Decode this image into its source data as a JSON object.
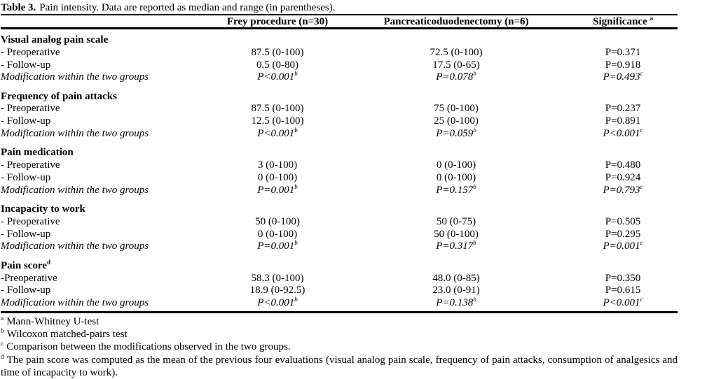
{
  "page": {
    "background": "#ffffff",
    "text_color": "#000000"
  },
  "table": {
    "title": {
      "label": "Table 3.",
      "text": "Pain intensity. Data are reported as median and range (in parentheses)."
    },
    "columns": [
      {
        "label": "Frey procedure (n=30)",
        "sup": ""
      },
      {
        "label": "Pancreaticoduodenectomy (n=6)",
        "sup": ""
      },
      {
        "label": "Significance",
        "sup": "a"
      }
    ],
    "sections": [
      {
        "header": {
          "label": "Visual analog pain scale",
          "sup": ""
        },
        "rows": [
          {
            "label": "- Preoperative",
            "italic": false,
            "cells": [
              {
                "text": "87.5 (0-100)",
                "sup": ""
              },
              {
                "text": "72.5 (0-100)",
                "sup": ""
              },
              {
                "text": "P=0.371",
                "sup": ""
              }
            ]
          },
          {
            "label": "- Follow-up",
            "italic": false,
            "cells": [
              {
                "text": "0.5 (0-80)",
                "sup": ""
              },
              {
                "text": "17.5 (0-65)",
                "sup": ""
              },
              {
                "text": "P=0.918",
                "sup": ""
              }
            ]
          },
          {
            "label": "Modification within the two groups",
            "italic": true,
            "cells": [
              {
                "text": "P<0.001",
                "sup": "b"
              },
              {
                "text": "P=0.078",
                "sup": "b"
              },
              {
                "text": "P=0.493",
                "sup": "c"
              }
            ]
          }
        ]
      },
      {
        "header": {
          "label": "Frequency of pain attacks",
          "sup": ""
        },
        "rows": [
          {
            "label": "- Preoperative",
            "italic": false,
            "cells": [
              {
                "text": "87.5 (0-100)",
                "sup": ""
              },
              {
                "text": "75 (0-100)",
                "sup": ""
              },
              {
                "text": "P=0.237",
                "sup": ""
              }
            ]
          },
          {
            "label": "- Follow-up",
            "italic": false,
            "cells": [
              {
                "text": "12.5 (0-100)",
                "sup": ""
              },
              {
                "text": "25 (0-100)",
                "sup": ""
              },
              {
                "text": "P=0.891",
                "sup": ""
              }
            ]
          },
          {
            "label": "Modification within the two groups",
            "italic": true,
            "cells": [
              {
                "text": "P<0.001",
                "sup": "b"
              },
              {
                "text": "P=0.059",
                "sup": "b"
              },
              {
                "text": "P<0.001",
                "sup": "c"
              }
            ]
          }
        ]
      },
      {
        "header": {
          "label": "Pain medication",
          "sup": ""
        },
        "rows": [
          {
            "label": "- Preoperative",
            "italic": false,
            "cells": [
              {
                "text": "3 (0-100)",
                "sup": ""
              },
              {
                "text": "0 (0-100)",
                "sup": ""
              },
              {
                "text": "P=0.480",
                "sup": ""
              }
            ]
          },
          {
            "label": "- Follow-up",
            "italic": false,
            "cells": [
              {
                "text": "0 (0-100)",
                "sup": ""
              },
              {
                "text": "0 (0-100)",
                "sup": ""
              },
              {
                "text": "P=0.924",
                "sup": ""
              }
            ]
          },
          {
            "label": "Modification within the two groups",
            "italic": true,
            "cells": [
              {
                "text": "P=0.001",
                "sup": "b"
              },
              {
                "text": "P=0.157",
                "sup": "b"
              },
              {
                "text": "P=0.793",
                "sup": "c"
              }
            ]
          }
        ]
      },
      {
        "header": {
          "label": "Incapacity to work",
          "sup": ""
        },
        "rows": [
          {
            "label": "- Preoperative",
            "italic": false,
            "cells": [
              {
                "text": "50 (0-100)",
                "sup": ""
              },
              {
                "text": "50 (0-75)",
                "sup": ""
              },
              {
                "text": "P=0.505",
                "sup": ""
              }
            ]
          },
          {
            "label": "- Follow-up",
            "italic": false,
            "cells": [
              {
                "text": "0 (0-100)",
                "sup": ""
              },
              {
                "text": "50 (0-100)",
                "sup": ""
              },
              {
                "text": "P=0.295",
                "sup": ""
              }
            ]
          },
          {
            "label": "Modification within the two groups",
            "italic": true,
            "cells": [
              {
                "text": "P=0.001",
                "sup": "b"
              },
              {
                "text": "P=0.317",
                "sup": "b"
              },
              {
                "text": "P=0.001",
                "sup": "c"
              }
            ]
          }
        ]
      },
      {
        "header": {
          "label": "Pain score",
          "sup": "d"
        },
        "rows": [
          {
            "label": "-Preoperative",
            "italic": false,
            "cells": [
              {
                "text": "58.3 (0-100)",
                "sup": ""
              },
              {
                "text": "48.0 (0-85)",
                "sup": ""
              },
              {
                "text": "P=0.350",
                "sup": ""
              }
            ]
          },
          {
            "label": "- Follow-up",
            "italic": false,
            "cells": [
              {
                "text": "18.9 (0-92.5)",
                "sup": ""
              },
              {
                "text": "23.0 (0-91)",
                "sup": ""
              },
              {
                "text": "P=0.615",
                "sup": ""
              }
            ]
          },
          {
            "label": "Modification within the two groups",
            "italic": true,
            "cells": [
              {
                "text": "P<0.001",
                "sup": "b"
              },
              {
                "text": "P=0.138",
                "sup": "b"
              },
              {
                "text": "P<0.001",
                "sup": "c"
              }
            ]
          }
        ]
      }
    ],
    "footnotes": [
      {
        "sup": "a",
        "text": "Mann-Whitney U-test",
        "justify": false
      },
      {
        "sup": "b",
        "text": "Wilcoxon matched-pairs test",
        "justify": false
      },
      {
        "sup": "c",
        "text": "Comparison between the modifications observed in the two groups.",
        "justify": false
      },
      {
        "sup": "d",
        "text": "The pain score was computed as the mean of the previous four evaluations (visual analog pain scale, frequency of pain attacks, consumption of analgesics and time of incapacity to work).",
        "justify": true
      }
    ]
  }
}
